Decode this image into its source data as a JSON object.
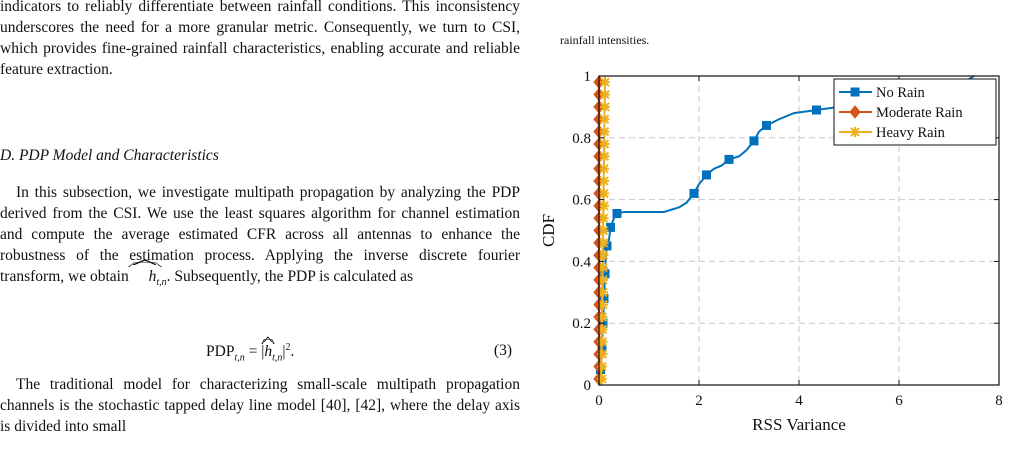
{
  "text": {
    "p1": "indicators to reliably differentiate between rainfall conditions. This inconsistency underscores the need for a more granular metric. Consequently, we turn to CSI, which provides fine-grained rainfall characteristics, enabling accurate and reliable feature extraction.",
    "heading": "D. PDP Model and Characteristics",
    "p2_a": "In this subsection, we investigate multipath propagation by analyzing the PDP derived from the CSI. We use the least squares algorithm for channel estimation and compute the average estimated CFR across all antennas to enhance the robustness of the estimation process. Applying the inverse discrete fourier transform, we obtain ",
    "p2_h": "h",
    "p2_sub": "t,n",
    "p2_b": ". Subsequently, the PDP is calculated as",
    "eq_lhs": "PDP",
    "eq_sub": "t,n",
    "eq_mid": " = |",
    "eq_h": "h",
    "eq_hsub": "t,n",
    "eq_rhs": "|",
    "eq_sup": "2",
    "eq_end": ".",
    "eq_num": "(3)",
    "p3": "The traditional model for characterizing small-scale multipath propagation channels is the stochastic tapped delay line model [40], [42], where the delay axis is divided into small",
    "caption": "rainfall intensities."
  },
  "chart_data": {
    "type": "line",
    "title": "",
    "xlabel": "RSS Variance",
    "ylabel": "CDF",
    "xlim": [
      0,
      8
    ],
    "ylim": [
      0,
      1
    ],
    "xticks": [
      "0",
      "2",
      "4",
      "6",
      "8"
    ],
    "yticks": [
      "0",
      "0.2",
      "0.4",
      "0.6",
      "0.8",
      "1"
    ],
    "grid": true,
    "legend_position": "top-right",
    "series": [
      {
        "name": "No Rain",
        "color": "#0072BD",
        "marker": "square",
        "line": [
          [
            0,
            0
          ],
          [
            0.03,
            0.05
          ],
          [
            0.06,
            0.12
          ],
          [
            0.08,
            0.2
          ],
          [
            0.1,
            0.28
          ],
          [
            0.12,
            0.36
          ],
          [
            0.14,
            0.42
          ],
          [
            0.16,
            0.45
          ],
          [
            0.2,
            0.47
          ],
          [
            0.23,
            0.51
          ],
          [
            0.3,
            0.54
          ],
          [
            0.36,
            0.555
          ],
          [
            0.5,
            0.56
          ],
          [
            1.3,
            0.56
          ],
          [
            1.6,
            0.575
          ],
          [
            1.75,
            0.59
          ],
          [
            1.9,
            0.62
          ],
          [
            2.0,
            0.65
          ],
          [
            2.15,
            0.68
          ],
          [
            2.3,
            0.7
          ],
          [
            2.45,
            0.71
          ],
          [
            2.6,
            0.73
          ],
          [
            2.8,
            0.74
          ],
          [
            2.95,
            0.76
          ],
          [
            3.1,
            0.79
          ],
          [
            3.2,
            0.82
          ],
          [
            3.35,
            0.84
          ],
          [
            3.6,
            0.86
          ],
          [
            3.9,
            0.88
          ],
          [
            4.35,
            0.89
          ],
          [
            4.8,
            0.9
          ],
          [
            5.5,
            0.91
          ],
          [
            6.2,
            0.92
          ],
          [
            6.9,
            0.94
          ],
          [
            7.3,
            0.98
          ],
          [
            7.5,
            1.0
          ]
        ],
        "markers": [
          [
            0.03,
            0.05
          ],
          [
            0.06,
            0.12
          ],
          [
            0.08,
            0.2
          ],
          [
            0.1,
            0.28
          ],
          [
            0.12,
            0.36
          ],
          [
            0.16,
            0.45
          ],
          [
            0.23,
            0.51
          ],
          [
            0.36,
            0.555
          ],
          [
            1.9,
            0.62
          ],
          [
            2.15,
            0.68
          ],
          [
            2.6,
            0.73
          ],
          [
            3.1,
            0.79
          ],
          [
            3.35,
            0.84
          ],
          [
            4.35,
            0.89
          ]
        ]
      },
      {
        "name": "Moderate Rain",
        "color": "#D95319",
        "marker": "diamond",
        "line": [
          [
            0,
            0
          ],
          [
            0.0,
            1.0
          ]
        ],
        "markers": [
          [
            0,
            0.02
          ],
          [
            0,
            0.06
          ],
          [
            0,
            0.1
          ],
          [
            0,
            0.14
          ],
          [
            0,
            0.18
          ],
          [
            0,
            0.22
          ],
          [
            0,
            0.26
          ],
          [
            0,
            0.3
          ],
          [
            0,
            0.34
          ],
          [
            0,
            0.38
          ],
          [
            0,
            0.42
          ],
          [
            0,
            0.46
          ],
          [
            0,
            0.5
          ],
          [
            0,
            0.54
          ],
          [
            0,
            0.58
          ],
          [
            0,
            0.62
          ],
          [
            0,
            0.66
          ],
          [
            0,
            0.7
          ],
          [
            0,
            0.74
          ],
          [
            0,
            0.78
          ],
          [
            0,
            0.82
          ],
          [
            0,
            0.86
          ],
          [
            0,
            0.9
          ],
          [
            0,
            0.94
          ],
          [
            0,
            0.98
          ]
        ]
      },
      {
        "name": "Heavy Rain",
        "color": "#EDB120",
        "marker": "asterisk",
        "line": [
          [
            0.04,
            0
          ],
          [
            0.12,
            1.0
          ]
        ],
        "markers": [
          [
            0.06,
            0.02
          ],
          [
            0.06,
            0.06
          ],
          [
            0.07,
            0.1
          ],
          [
            0.07,
            0.14
          ],
          [
            0.07,
            0.18
          ],
          [
            0.07,
            0.22
          ],
          [
            0.08,
            0.26
          ],
          [
            0.08,
            0.3
          ],
          [
            0.08,
            0.34
          ],
          [
            0.08,
            0.38
          ],
          [
            0.09,
            0.42
          ],
          [
            0.09,
            0.46
          ],
          [
            0.09,
            0.5
          ],
          [
            0.09,
            0.54
          ],
          [
            0.1,
            0.58
          ],
          [
            0.1,
            0.62
          ],
          [
            0.1,
            0.66
          ],
          [
            0.1,
            0.7
          ],
          [
            0.11,
            0.74
          ],
          [
            0.11,
            0.78
          ],
          [
            0.11,
            0.82
          ],
          [
            0.11,
            0.86
          ],
          [
            0.12,
            0.9
          ],
          [
            0.12,
            0.94
          ],
          [
            0.12,
            0.98
          ]
        ]
      }
    ]
  }
}
